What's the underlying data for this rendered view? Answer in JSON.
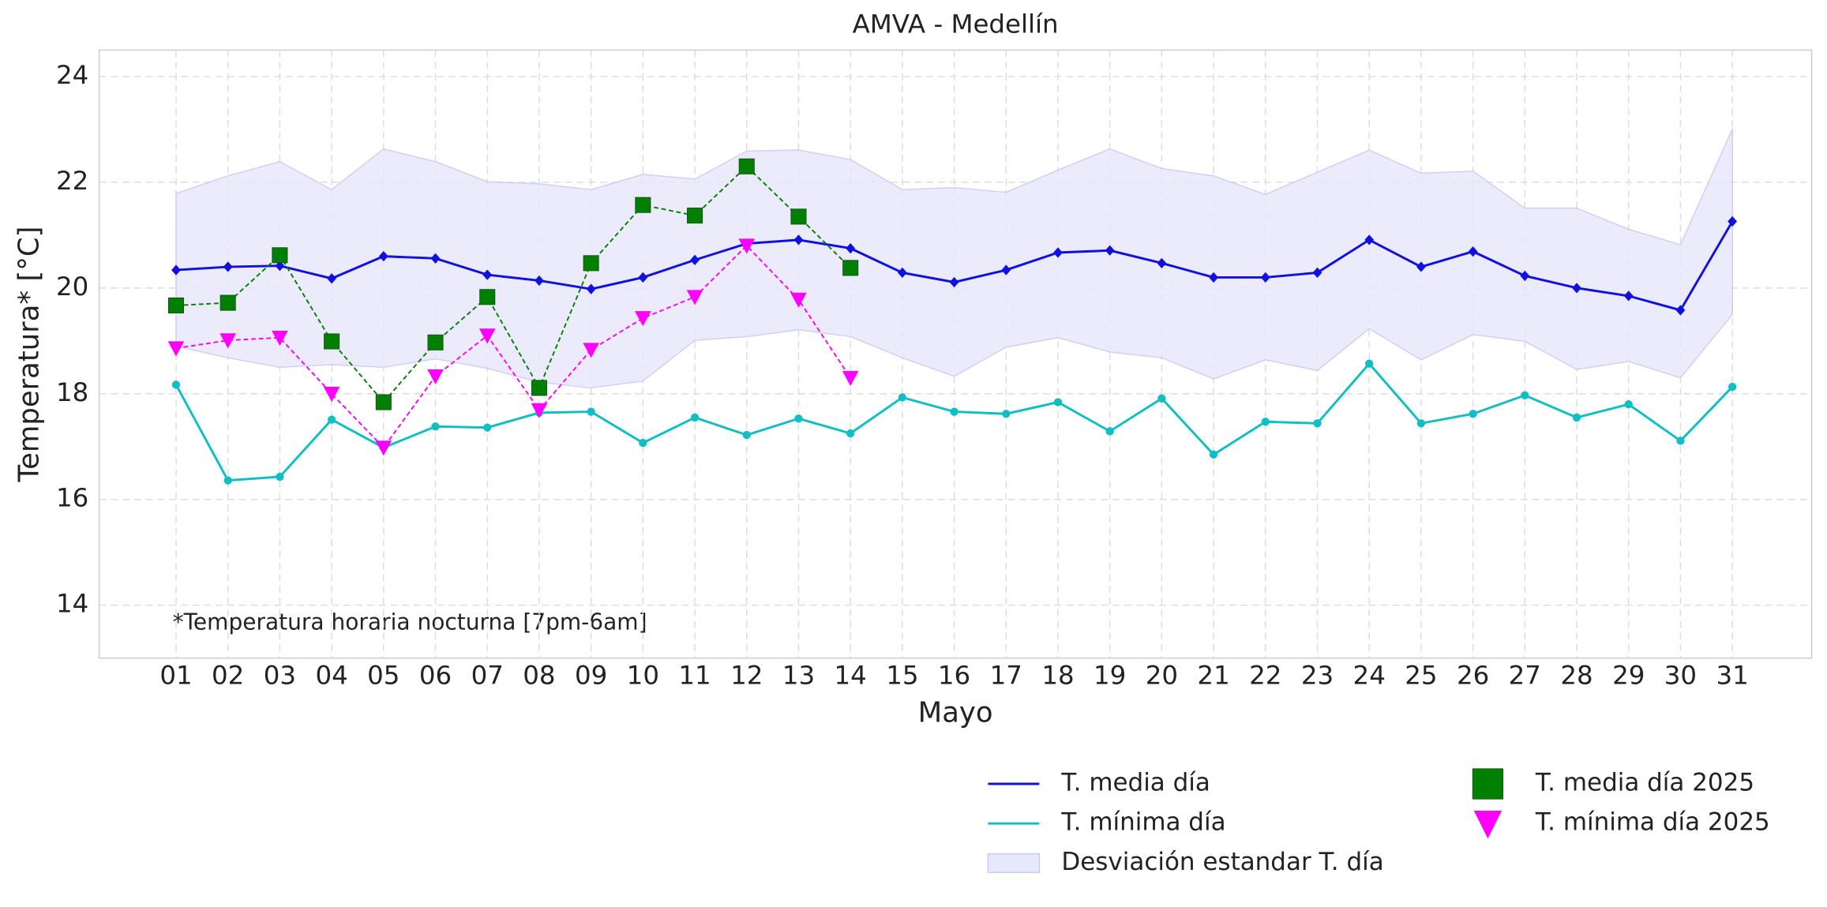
{
  "chart_data": {
    "type": "line",
    "title": "AMVA - Medellín",
    "xlabel": "Mayo",
    "ylabel": "Temperatura* [°C]",
    "annotation": "*Temperatura horaria nocturna [7pm-6am]",
    "categories": [
      "01",
      "02",
      "03",
      "04",
      "05",
      "06",
      "07",
      "08",
      "09",
      "10",
      "11",
      "12",
      "13",
      "14",
      "15",
      "16",
      "17",
      "18",
      "19",
      "20",
      "21",
      "22",
      "23",
      "24",
      "25",
      "26",
      "27",
      "28",
      "29",
      "30",
      "31"
    ],
    "ylim": [
      13,
      24.5
    ],
    "yticks": [
      14,
      16,
      18,
      20,
      22,
      24
    ],
    "grid": true,
    "legend": "lower right",
    "series": [
      {
        "name": "T. media día",
        "color": "#1010e0",
        "marker": "diamond",
        "linestyle": "solid",
        "values": [
          20.34,
          20.4,
          20.42,
          20.18,
          20.6,
          20.56,
          20.25,
          20.14,
          19.98,
          20.2,
          20.53,
          20.84,
          20.91,
          20.75,
          20.29,
          20.11,
          20.34,
          20.67,
          20.71,
          20.47,
          20.2,
          20.2,
          20.29,
          20.91,
          20.4,
          20.69,
          20.23,
          20.0,
          19.85,
          19.58,
          21.26
        ]
      },
      {
        "name": "T. mínima día",
        "color": "#10bfc4",
        "marker": "circle",
        "linestyle": "solid",
        "values": [
          18.17,
          16.36,
          16.43,
          17.51,
          16.98,
          17.38,
          17.36,
          17.64,
          17.66,
          17.07,
          17.55,
          17.22,
          17.53,
          17.25,
          17.93,
          17.66,
          17.62,
          17.84,
          17.29,
          17.91,
          16.85,
          17.47,
          17.44,
          18.57,
          17.44,
          17.62,
          17.97,
          17.55,
          17.8,
          17.11,
          18.13
        ]
      },
      {
        "name": "Desviación estandar T. día",
        "color": "#e8e8fc",
        "kind": "band",
        "upper": [
          21.79,
          22.12,
          22.39,
          21.86,
          22.63,
          22.39,
          22.01,
          21.97,
          21.86,
          22.15,
          22.06,
          22.59,
          22.61,
          22.43,
          21.86,
          21.9,
          21.81,
          22.23,
          22.63,
          22.26,
          22.12,
          21.77,
          22.19,
          22.61,
          22.17,
          22.21,
          21.51,
          21.51,
          21.11,
          20.82,
          23.01
        ],
        "lower": [
          18.9,
          18.68,
          18.5,
          18.55,
          18.5,
          18.66,
          18.48,
          18.22,
          18.11,
          18.24,
          19.01,
          19.08,
          19.21,
          19.08,
          18.68,
          18.33,
          18.88,
          19.06,
          18.79,
          18.68,
          18.28,
          18.64,
          18.44,
          19.23,
          18.64,
          19.12,
          18.99,
          18.46,
          18.61,
          18.3,
          19.5
        ]
      },
      {
        "name": "T. media día 2025",
        "color": "#008000",
        "marker": "square",
        "linestyle": "dashed",
        "values": [
          19.67,
          19.72,
          20.62,
          18.99,
          17.84,
          18.97,
          19.83,
          18.11,
          20.47,
          21.57,
          21.37,
          22.3,
          21.35,
          20.38,
          null,
          null,
          null,
          null,
          null,
          null,
          null,
          null,
          null,
          null,
          null,
          null,
          null,
          null,
          null,
          null,
          null
        ]
      },
      {
        "name": "T. mínima día 2025",
        "color": "#ff00ff",
        "marker": "triangle",
        "linestyle": "dashed",
        "values": [
          18.86,
          19.01,
          19.06,
          18.0,
          16.98,
          18.33,
          19.1,
          17.69,
          18.83,
          19.43,
          19.83,
          20.8,
          19.78,
          18.3,
          null,
          null,
          null,
          null,
          null,
          null,
          null,
          null,
          null,
          null,
          null,
          null,
          null,
          null,
          null,
          null,
          null
        ]
      }
    ]
  }
}
